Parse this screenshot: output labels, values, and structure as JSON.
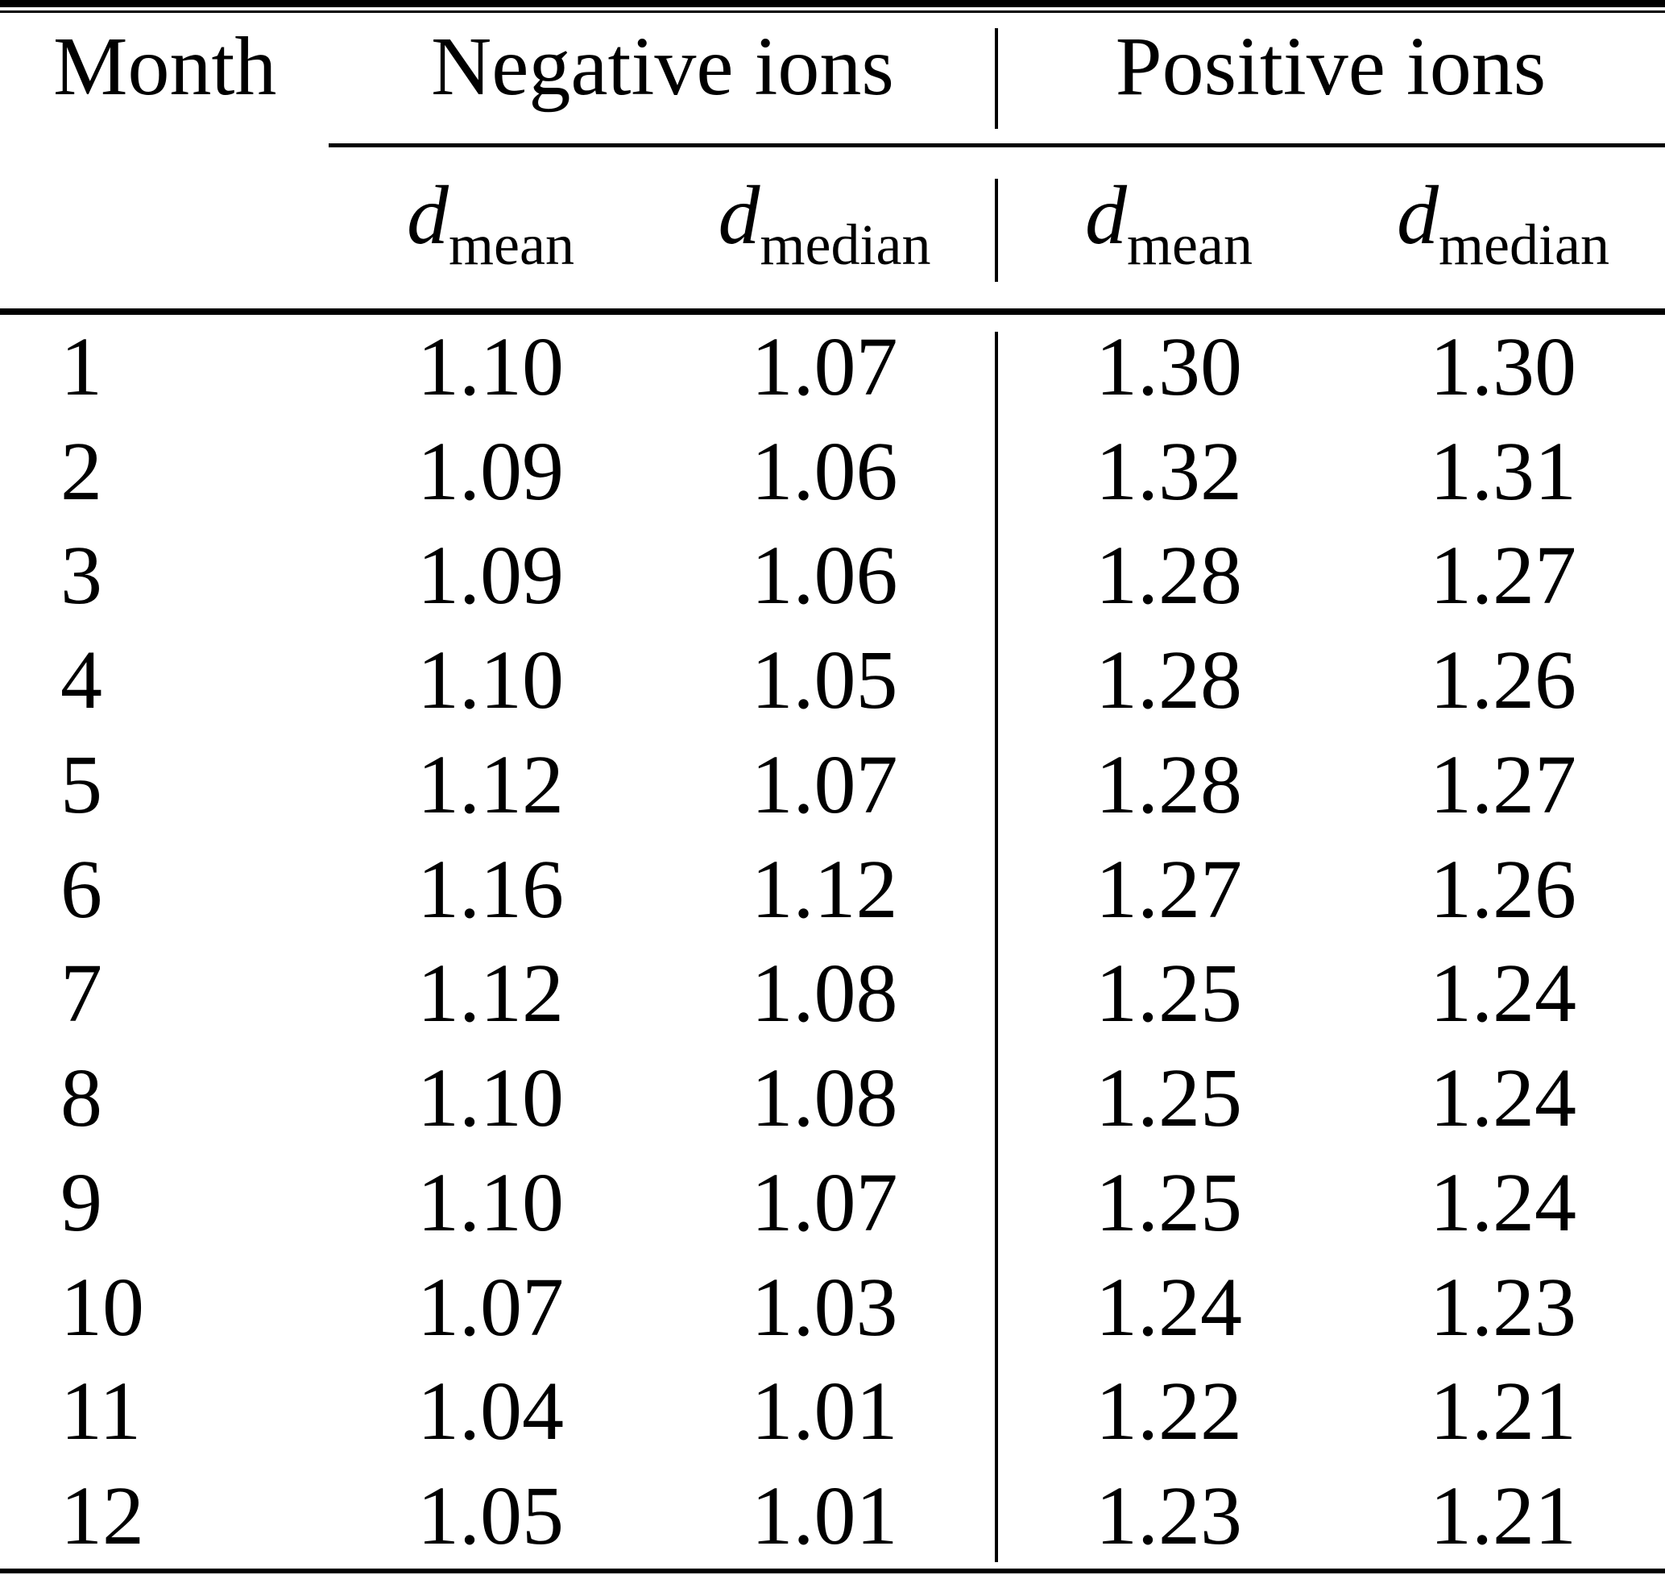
{
  "table": {
    "header": {
      "month": "Month",
      "negative_group": "Negative ions",
      "positive_group": "Positive ions"
    },
    "subheader": {
      "d": "d",
      "mean": "mean",
      "median": "median"
    },
    "rows": [
      {
        "month": "1",
        "neg_mean": "1.10",
        "neg_median": "1.07",
        "pos_mean": "1.30",
        "pos_median": "1.30"
      },
      {
        "month": "2",
        "neg_mean": "1.09",
        "neg_median": "1.06",
        "pos_mean": "1.32",
        "pos_median": "1.31"
      },
      {
        "month": "3",
        "neg_mean": "1.09",
        "neg_median": "1.06",
        "pos_mean": "1.28",
        "pos_median": "1.27"
      },
      {
        "month": "4",
        "neg_mean": "1.10",
        "neg_median": "1.05",
        "pos_mean": "1.28",
        "pos_median": "1.26"
      },
      {
        "month": "5",
        "neg_mean": "1.12",
        "neg_median": "1.07",
        "pos_mean": "1.28",
        "pos_median": "1.27"
      },
      {
        "month": "6",
        "neg_mean": "1.16",
        "neg_median": "1.12",
        "pos_mean": "1.27",
        "pos_median": "1.26"
      },
      {
        "month": "7",
        "neg_mean": "1.12",
        "neg_median": "1.08",
        "pos_mean": "1.25",
        "pos_median": "1.24"
      },
      {
        "month": "8",
        "neg_mean": "1.10",
        "neg_median": "1.08",
        "pos_mean": "1.25",
        "pos_median": "1.24"
      },
      {
        "month": "9",
        "neg_mean": "1.10",
        "neg_median": "1.07",
        "pos_mean": "1.25",
        "pos_median": "1.24"
      },
      {
        "month": "10",
        "neg_mean": "1.07",
        "neg_median": "1.03",
        "pos_mean": "1.24",
        "pos_median": "1.23"
      },
      {
        "month": "11",
        "neg_mean": "1.04",
        "neg_median": "1.01",
        "pos_mean": "1.22",
        "pos_median": "1.21"
      },
      {
        "month": "12",
        "neg_mean": "1.05",
        "neg_median": "1.01",
        "pos_mean": "1.23",
        "pos_median": "1.21"
      }
    ]
  }
}
